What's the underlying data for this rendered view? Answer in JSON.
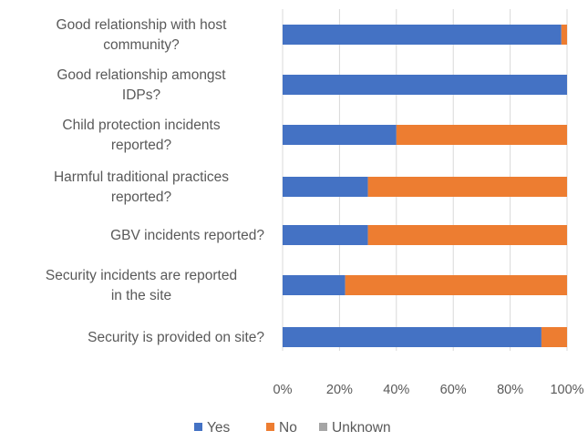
{
  "chart_data": {
    "type": "bar",
    "orientation": "horizontal",
    "stacked": "percent",
    "categories": [
      [
        "Good relationship with host",
        "community?"
      ],
      [
        "Good relationship amongst",
        "IDPs?"
      ],
      [
        "Child protection incidents",
        "reported?"
      ],
      [
        "Harmful traditional practices",
        "reported?"
      ],
      [
        "GBV incidents reported?"
      ],
      [
        "Security incidents are reported",
        "in the site"
      ],
      [
        "Security is provided on site?"
      ]
    ],
    "series": [
      {
        "name": "Yes",
        "color": "#4472C4",
        "values": [
          98,
          100,
          40,
          30,
          30,
          22,
          91
        ]
      },
      {
        "name": "No",
        "color": "#ED7D31",
        "values": [
          2,
          0,
          60,
          70,
          70,
          78,
          9
        ]
      },
      {
        "name": "Unknown",
        "color": "#A5A5A5",
        "values": [
          0,
          0,
          0,
          0,
          0,
          0,
          0
        ]
      }
    ],
    "xlim": [
      0,
      100
    ],
    "xticks": [
      "0%",
      "20%",
      "40%",
      "60%",
      "80%",
      "100%"
    ],
    "grid": true,
    "legend_position": "bottom"
  }
}
